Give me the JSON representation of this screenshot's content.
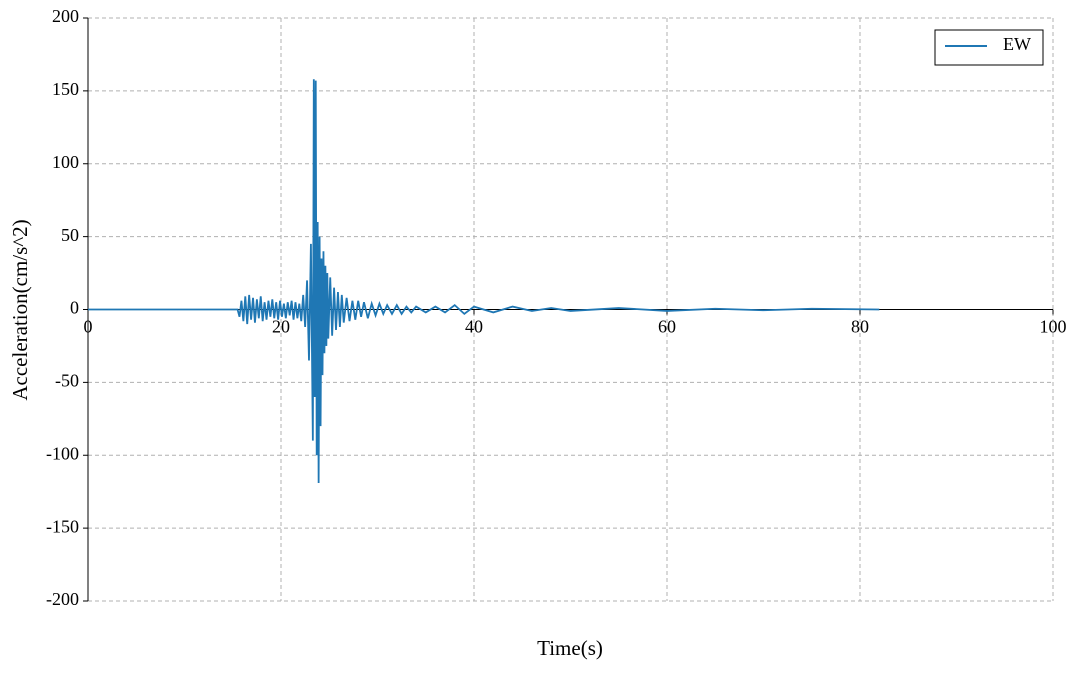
{
  "chart_data": {
    "type": "line",
    "xlabel": "Time(s)",
    "ylabel": "Acceleration(cm/s^2)",
    "x": [
      0,
      15.5,
      15.7,
      15.9,
      16.1,
      16.3,
      16.5,
      16.7,
      16.9,
      17.1,
      17.3,
      17.5,
      17.7,
      17.9,
      18.1,
      18.3,
      18.5,
      18.7,
      18.9,
      19.1,
      19.3,
      19.5,
      19.7,
      19.9,
      20.1,
      20.3,
      20.5,
      20.7,
      20.9,
      21.1,
      21.3,
      21.5,
      21.7,
      21.9,
      22.1,
      22.3,
      22.5,
      22.7,
      22.9,
      23.1,
      23.3,
      23.4,
      23.5,
      23.6,
      23.7,
      23.8,
      23.9,
      24.0,
      24.1,
      24.2,
      24.3,
      24.4,
      24.5,
      24.6,
      24.7,
      24.8,
      24.9,
      25.1,
      25.3,
      25.5,
      25.7,
      25.9,
      26.1,
      26.3,
      26.5,
      26.8,
      27.1,
      27.4,
      27.7,
      28.0,
      28.3,
      28.6,
      29.0,
      29.4,
      29.8,
      30.2,
      30.6,
      31,
      31.5,
      32,
      32.5,
      33,
      33.5,
      34,
      35,
      36,
      37,
      38,
      39,
      40,
      42,
      44,
      46,
      48,
      50,
      55,
      60,
      65,
      70,
      75,
      82
    ],
    "series": [
      {
        "name": "EW",
        "color": "#1f77b4",
        "values": [
          0,
          0,
          -5,
          6,
          -8,
          9,
          -10,
          10,
          -7,
          8,
          -9,
          7,
          -6,
          9,
          -8,
          5,
          -7,
          6,
          -5,
          7,
          -6,
          5,
          -7,
          6,
          -5,
          4,
          -6,
          5,
          -4,
          6,
          -7,
          5,
          -6,
          4,
          -8,
          10,
          -12,
          20,
          -35,
          45,
          -90,
          158,
          -60,
          157,
          -100,
          60,
          -119,
          50,
          -80,
          35,
          -45,
          40,
          -30,
          30,
          -25,
          25,
          -20,
          22,
          -18,
          15,
          -14,
          12,
          -12,
          10,
          -9,
          8,
          -8,
          6,
          -7,
          6,
          -5,
          5,
          -6,
          4,
          -4,
          4,
          -3,
          3,
          -3,
          3,
          -3,
          2,
          -2,
          2,
          -2,
          2,
          -2,
          3,
          -3,
          2,
          -2,
          2,
          -1,
          1,
          -1,
          1,
          -1,
          0.5,
          -0.5,
          0.5,
          0
        ]
      }
    ],
    "xlim": [
      0,
      100
    ],
    "xticks": [
      0,
      20,
      40,
      60,
      80,
      100
    ],
    "ylim": [
      -200,
      200
    ],
    "yticks": [
      -200,
      -150,
      -100,
      -50,
      0,
      50,
      100,
      150,
      200
    ],
    "grid": true,
    "legend": "upper right"
  }
}
